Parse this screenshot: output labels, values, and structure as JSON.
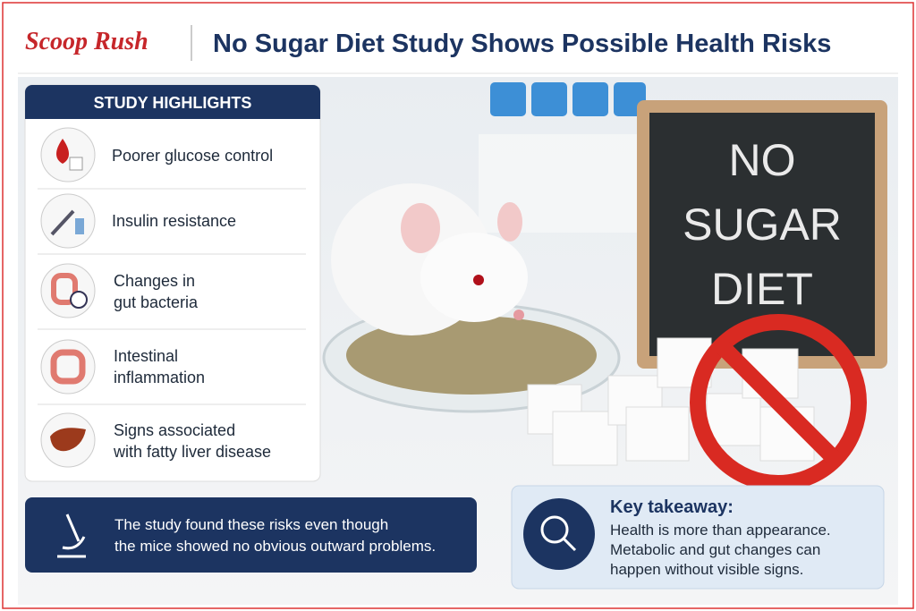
{
  "header": {
    "brand": "Scoop Rush",
    "title": "No Sugar Diet Study Shows Possible Health Risks"
  },
  "highlights": {
    "title": "STUDY HIGHLIGHTS",
    "items": [
      {
        "lines": [
          "Poorer glucose control"
        ]
      },
      {
        "lines": [
          "Insulin resistance"
        ]
      },
      {
        "lines": [
          "Changes in",
          "gut bacteria"
        ]
      },
      {
        "lines": [
          "Intestinal",
          "inflammation"
        ]
      },
      {
        "lines": [
          "Signs associated",
          "with fatty liver disease"
        ]
      }
    ]
  },
  "sign": {
    "lines": [
      "NO",
      "SUGAR",
      "DIET"
    ]
  },
  "note": {
    "lines": [
      "The study found these risks even though",
      "the mice showed no obvious outward problems."
    ]
  },
  "takeaway": {
    "title": "Key takeaway:",
    "lines": [
      "Health is more than appearance.",
      "Metabolic and gut changes can",
      "happen without visible signs."
    ]
  }
}
